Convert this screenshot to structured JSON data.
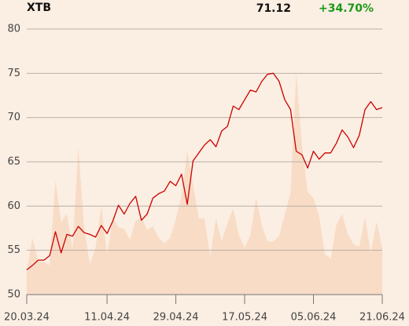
{
  "chart_data": {
    "type": "line",
    "title": "XTB",
    "last_price": "71.12",
    "change": "+34.70%",
    "categories": [
      "20.03.24",
      null,
      null,
      null,
      null,
      null,
      null,
      null,
      null,
      null,
      null,
      null,
      null,
      null,
      "11.04.24",
      null,
      null,
      null,
      null,
      null,
      null,
      null,
      null,
      null,
      null,
      null,
      "29.04.24",
      null,
      null,
      null,
      null,
      null,
      null,
      null,
      null,
      null,
      null,
      null,
      "17.05.24",
      null,
      null,
      null,
      null,
      null,
      null,
      null,
      null,
      null,
      null,
      null,
      "05.06.24",
      null,
      null,
      null,
      null,
      null,
      null,
      null,
      null,
      null,
      null,
      null,
      "21.06.24"
    ],
    "values": [
      52.8,
      53.3,
      53.9,
      53.9,
      54.4,
      57.1,
      54.7,
      56.8,
      56.6,
      57.7,
      57.0,
      56.8,
      56.5,
      57.8,
      56.9,
      58.3,
      60.1,
      59.1,
      60.3,
      61.1,
      58.4,
      59.1,
      60.9,
      61.4,
      61.7,
      62.8,
      62.3,
      63.6,
      60.2,
      65.1,
      66.0,
      66.9,
      67.5,
      66.7,
      68.5,
      69.0,
      71.3,
      70.9,
      72.0,
      73.1,
      72.9,
      74.1,
      74.9,
      75.0,
      74.1,
      72.0,
      70.9,
      66.2,
      65.8,
      64.3,
      66.2,
      65.3,
      66.0,
      66.0,
      67.1,
      68.6,
      67.8,
      66.6,
      68.0,
      70.9,
      71.8,
      70.9,
      71.12
    ],
    "color": "#cc0000",
    "area_values": [
      52.7,
      56.4,
      53.7,
      53.7,
      53.3,
      62.9,
      58.2,
      59.1,
      55.1,
      66.6,
      57.6,
      53.4,
      55.3,
      60.0,
      54.5,
      58.6,
      57.6,
      57.4,
      56.2,
      58.3,
      58.7,
      57.3,
      57.7,
      56.4,
      55.8,
      56.4,
      58.5,
      61.1,
      66.2,
      62.4,
      58.6,
      58.6,
      54.3,
      58.6,
      56.0,
      58.1,
      59.7,
      56.7,
      55.3,
      56.7,
      60.9,
      57.8,
      56.0,
      56.0,
      56.6,
      59.0,
      61.5,
      75.0,
      66.9,
      61.6,
      60.9,
      58.8,
      54.6,
      54.0,
      57.9,
      59.1,
      56.8,
      55.7,
      55.4,
      58.7,
      54.7,
      58.2,
      55.3
    ],
    "area_color": "#f8dcc6",
    "change_color": "#1a9a1a",
    "ylim": [
      50,
      80
    ],
    "yticks": [
      50,
      55,
      60,
      65,
      70,
      75,
      80
    ],
    "grid": true
  }
}
